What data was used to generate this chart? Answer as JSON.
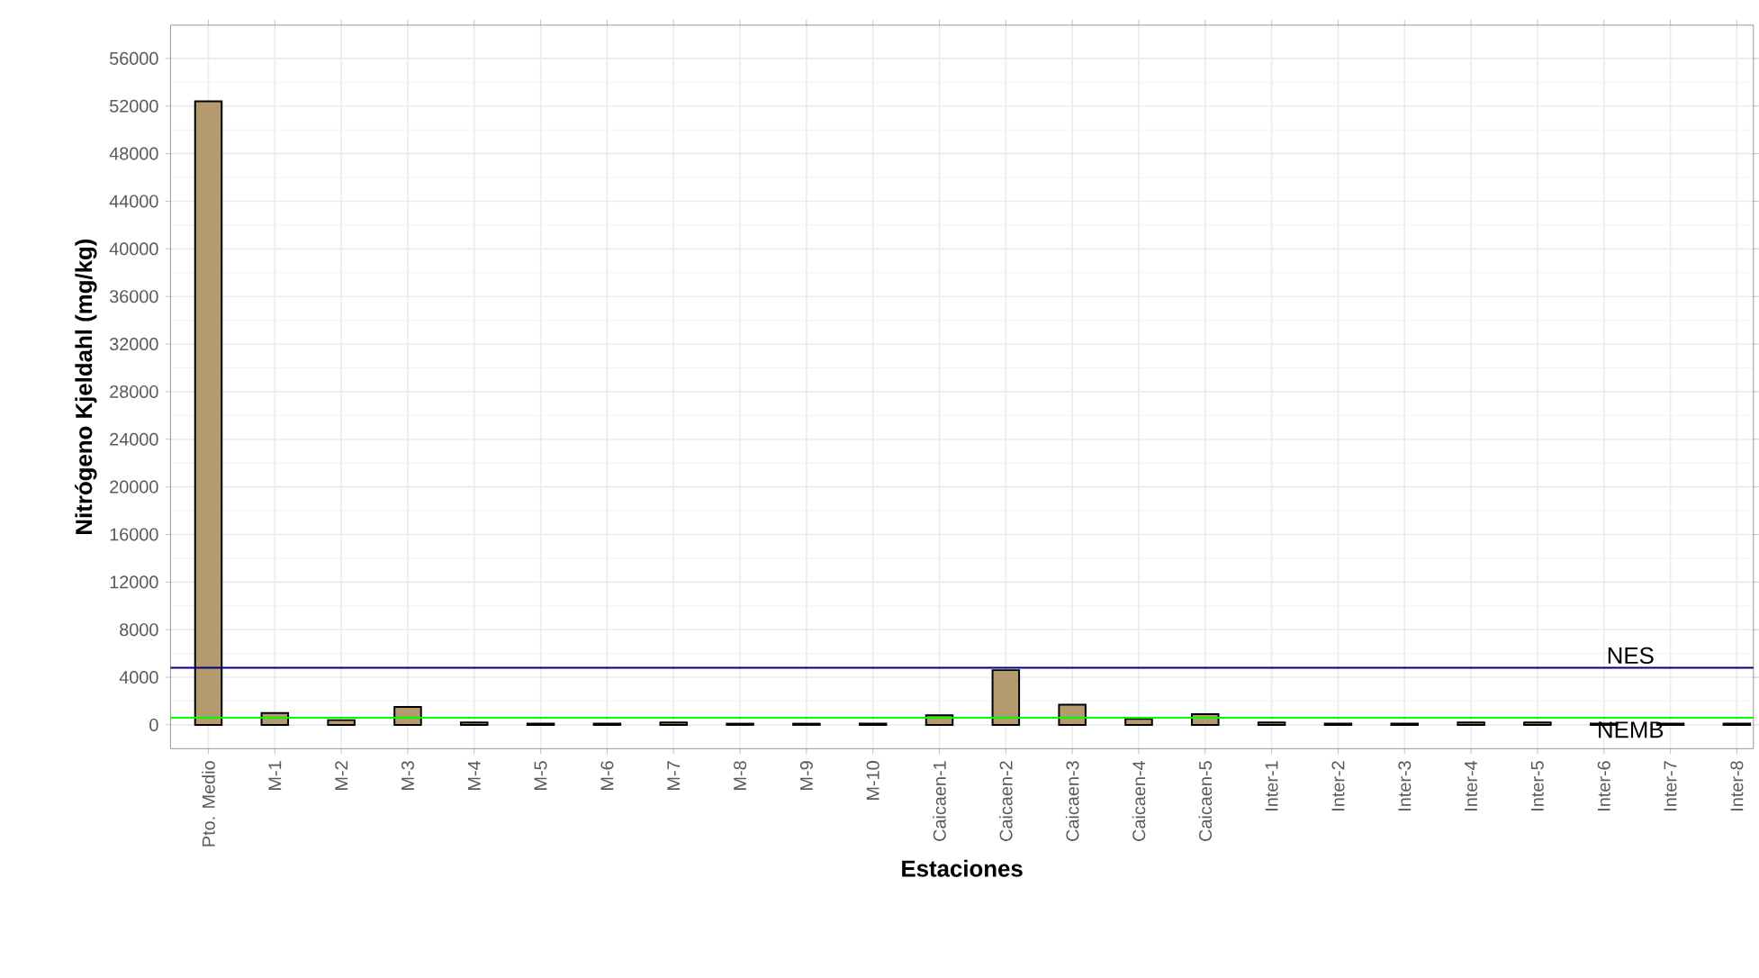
{
  "chart_data": {
    "type": "bar",
    "xlabel": "Estaciones",
    "ylabel": "Nitrógeno Kjeldahl (mg/kg)",
    "categories": [
      "Pto. Medio",
      "M-1",
      "M-2",
      "M-3",
      "M-4",
      "M-5",
      "M-6",
      "M-7",
      "M-8",
      "M-9",
      "M-10",
      "Caicaen-1",
      "Caicaen-2",
      "Caicaen-3",
      "Caicaen-4",
      "Caicaen-5",
      "Inter-1",
      "Inter-2",
      "Inter-3",
      "Inter-4",
      "Inter-5",
      "Inter-6",
      "Inter-7",
      "Inter-8"
    ],
    "values": [
      52400,
      1000,
      400,
      1500,
      200,
      100,
      100,
      200,
      100,
      100,
      100,
      800,
      4600,
      1700,
      500,
      900,
      200,
      100,
      100,
      200,
      200,
      100,
      100,
      100
    ],
    "color": "#b49b6e",
    "ylim": [
      -2000,
      58800
    ],
    "yticks": [
      0,
      4000,
      8000,
      12000,
      16000,
      20000,
      24000,
      28000,
      32000,
      36000,
      40000,
      44000,
      48000,
      52000,
      56000
    ],
    "grid": true,
    "ref_lines": [
      {
        "axis": "y",
        "value": 4800,
        "label": "NES",
        "color": "#000080"
      },
      {
        "axis": "y",
        "value": 600,
        "label": "NEMB",
        "color": "#00ff00"
      }
    ]
  }
}
